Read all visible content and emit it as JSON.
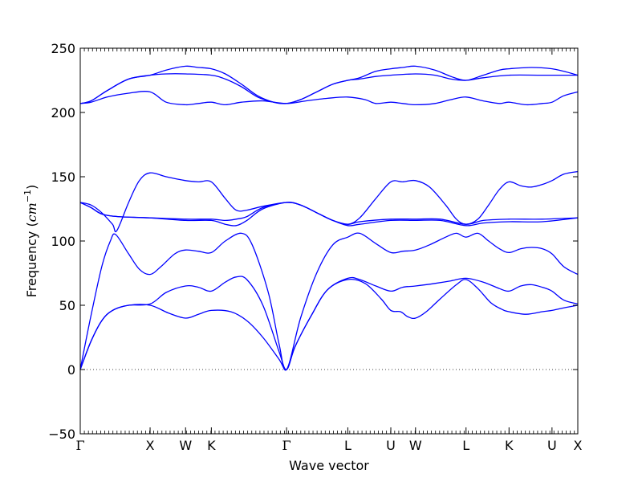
{
  "chart_data": {
    "type": "line",
    "xlabel": "Wave vector",
    "ylabel": {
      "text": "Frequency (",
      "unit": "cm",
      "exp": "−1",
      "close": ")"
    },
    "ylim": [
      -50,
      250
    ],
    "xlim": [
      0,
      4.63
    ],
    "yticks": [
      -50,
      0,
      50,
      100,
      150,
      200,
      250
    ],
    "ytick_labels": [
      "−50",
      "0",
      "50",
      "100",
      "150",
      "200",
      "250"
    ],
    "xticks": [
      {
        "label": "Γ",
        "x": 0.0
      },
      {
        "label": "X",
        "x": 0.65
      },
      {
        "label": "W",
        "x": 0.98
      },
      {
        "label": "K",
        "x": 1.22
      },
      {
        "label": "Γ",
        "x": 1.92
      },
      {
        "label": "L",
        "x": 2.49
      },
      {
        "label": "U",
        "x": 2.89
      },
      {
        "label": "W",
        "x": 3.12
      },
      {
        "label": "L",
        "x": 3.59
      },
      {
        "label": "K",
        "x": 3.99
      },
      {
        "label": "U",
        "x": 4.39
      },
      {
        "label": "X",
        "x": 4.63
      }
    ],
    "minor_tick_step": 0.038,
    "zero_line": {
      "y": 0,
      "style": "dotted"
    },
    "grid": false,
    "line_color": "#0000ff",
    "series": [
      {
        "values": [
          [
            0.0,
            0
          ],
          [
            0.1,
            22
          ],
          [
            0.2,
            38
          ],
          [
            0.3,
            46
          ],
          [
            0.45,
            50
          ],
          [
            0.65,
            50
          ],
          [
            0.82,
            44
          ],
          [
            0.98,
            40
          ],
          [
            1.1,
            43
          ],
          [
            1.22,
            46
          ],
          [
            1.4,
            45
          ],
          [
            1.55,
            38
          ],
          [
            1.7,
            25
          ],
          [
            1.85,
            8
          ],
          [
            1.92,
            0
          ],
          [
            2.0,
            18
          ],
          [
            2.15,
            42
          ],
          [
            2.3,
            62
          ],
          [
            2.49,
            70
          ],
          [
            2.65,
            67
          ],
          [
            2.8,
            55
          ],
          [
            2.89,
            46
          ],
          [
            2.98,
            45
          ],
          [
            3.05,
            41
          ],
          [
            3.12,
            40
          ],
          [
            3.22,
            45
          ],
          [
            3.35,
            55
          ],
          [
            3.5,
            66
          ],
          [
            3.59,
            70
          ],
          [
            3.7,
            63
          ],
          [
            3.82,
            52
          ],
          [
            3.92,
            47
          ],
          [
            3.99,
            45
          ],
          [
            4.15,
            43
          ],
          [
            4.3,
            45
          ],
          [
            4.39,
            46
          ],
          [
            4.5,
            48
          ],
          [
            4.63,
            50
          ]
        ]
      },
      {
        "values": [
          [
            0.0,
            0
          ],
          [
            0.1,
            22
          ],
          [
            0.2,
            38
          ],
          [
            0.3,
            46
          ],
          [
            0.45,
            50
          ],
          [
            0.65,
            51
          ],
          [
            0.8,
            60
          ],
          [
            0.98,
            65
          ],
          [
            1.1,
            64
          ],
          [
            1.22,
            61
          ],
          [
            1.35,
            68
          ],
          [
            1.45,
            72
          ],
          [
            1.55,
            70
          ],
          [
            1.7,
            50
          ],
          [
            1.85,
            14
          ],
          [
            1.92,
            0
          ],
          [
            2.0,
            18
          ],
          [
            2.15,
            42
          ],
          [
            2.3,
            62
          ],
          [
            2.49,
            71
          ],
          [
            2.6,
            70
          ],
          [
            2.75,
            65
          ],
          [
            2.89,
            61
          ],
          [
            3.0,
            64
          ],
          [
            3.12,
            65
          ],
          [
            3.3,
            67
          ],
          [
            3.45,
            69
          ],
          [
            3.59,
            71
          ],
          [
            3.75,
            68
          ],
          [
            3.9,
            63
          ],
          [
            3.99,
            61
          ],
          [
            4.1,
            65
          ],
          [
            4.2,
            66
          ],
          [
            4.3,
            64
          ],
          [
            4.39,
            61
          ],
          [
            4.5,
            54
          ],
          [
            4.63,
            51
          ]
        ]
      },
      {
        "values": [
          [
            0.0,
            0
          ],
          [
            0.1,
            42
          ],
          [
            0.2,
            80
          ],
          [
            0.28,
            100
          ],
          [
            0.33,
            105
          ],
          [
            0.45,
            90
          ],
          [
            0.55,
            78
          ],
          [
            0.65,
            74
          ],
          [
            0.75,
            80
          ],
          [
            0.88,
            90
          ],
          [
            0.98,
            93
          ],
          [
            1.1,
            92
          ],
          [
            1.22,
            91
          ],
          [
            1.35,
            100
          ],
          [
            1.5,
            106
          ],
          [
            1.6,
            97
          ],
          [
            1.75,
            60
          ],
          [
            1.85,
            20
          ],
          [
            1.92,
            0
          ],
          [
            2.05,
            40
          ],
          [
            2.2,
            75
          ],
          [
            2.35,
            97
          ],
          [
            2.49,
            103
          ],
          [
            2.6,
            106
          ],
          [
            2.75,
            98
          ],
          [
            2.89,
            91
          ],
          [
            3.0,
            92
          ],
          [
            3.12,
            93
          ],
          [
            3.25,
            97
          ],
          [
            3.4,
            103
          ],
          [
            3.5,
            106
          ],
          [
            3.59,
            103
          ],
          [
            3.7,
            106
          ],
          [
            3.8,
            100
          ],
          [
            3.9,
            94
          ],
          [
            3.99,
            91
          ],
          [
            4.1,
            94
          ],
          [
            4.2,
            95
          ],
          [
            4.3,
            94
          ],
          [
            4.39,
            90
          ],
          [
            4.5,
            80
          ],
          [
            4.63,
            74
          ]
        ]
      },
      {
        "values": [
          [
            0.0,
            130
          ],
          [
            0.1,
            128
          ],
          [
            0.2,
            122
          ],
          [
            0.3,
            113
          ],
          [
            0.34,
            108
          ],
          [
            0.45,
            130
          ],
          [
            0.55,
            147
          ],
          [
            0.65,
            153
          ],
          [
            0.8,
            150
          ],
          [
            0.98,
            147
          ],
          [
            1.1,
            146
          ],
          [
            1.22,
            146
          ],
          [
            1.35,
            133
          ],
          [
            1.45,
            124
          ],
          [
            1.55,
            124
          ],
          [
            1.7,
            127
          ],
          [
            1.92,
            130
          ],
          [
            2.05,
            128
          ],
          [
            2.2,
            122
          ],
          [
            2.35,
            116
          ],
          [
            2.49,
            113
          ],
          [
            2.6,
            118
          ],
          [
            2.75,
            133
          ],
          [
            2.89,
            146
          ],
          [
            3.0,
            146
          ],
          [
            3.12,
            147
          ],
          [
            3.25,
            142
          ],
          [
            3.4,
            128
          ],
          [
            3.5,
            117
          ],
          [
            3.59,
            113
          ],
          [
            3.7,
            117
          ],
          [
            3.8,
            128
          ],
          [
            3.9,
            140
          ],
          [
            3.99,
            146
          ],
          [
            4.1,
            143
          ],
          [
            4.2,
            142
          ],
          [
            4.3,
            144
          ],
          [
            4.39,
            147
          ],
          [
            4.5,
            152
          ],
          [
            4.63,
            154
          ]
        ]
      },
      {
        "values": [
          [
            0.0,
            130
          ],
          [
            0.1,
            126
          ],
          [
            0.2,
            121
          ],
          [
            0.35,
            119
          ],
          [
            0.65,
            118
          ],
          [
            0.98,
            116
          ],
          [
            1.22,
            116
          ],
          [
            1.35,
            113
          ],
          [
            1.45,
            112
          ],
          [
            1.55,
            116
          ],
          [
            1.7,
            125
          ],
          [
            1.92,
            130
          ],
          [
            2.05,
            128
          ],
          [
            2.2,
            122
          ],
          [
            2.35,
            116
          ],
          [
            2.49,
            112
          ],
          [
            2.6,
            113
          ],
          [
            2.89,
            116
          ],
          [
            3.12,
            116
          ],
          [
            3.35,
            116
          ],
          [
            3.59,
            112
          ],
          [
            3.75,
            114
          ],
          [
            3.99,
            115
          ],
          [
            4.3,
            115
          ],
          [
            4.63,
            118
          ]
        ]
      },
      {
        "values": [
          [
            0.0,
            130
          ],
          [
            0.1,
            126
          ],
          [
            0.2,
            121
          ],
          [
            0.35,
            119
          ],
          [
            0.65,
            118
          ],
          [
            0.98,
            117
          ],
          [
            1.22,
            117
          ],
          [
            1.35,
            116
          ],
          [
            1.45,
            117
          ],
          [
            1.55,
            119
          ],
          [
            1.7,
            126
          ],
          [
            1.92,
            130
          ],
          [
            2.05,
            128
          ],
          [
            2.2,
            122
          ],
          [
            2.35,
            116
          ],
          [
            2.49,
            113
          ],
          [
            2.6,
            115
          ],
          [
            2.89,
            117
          ],
          [
            3.12,
            117
          ],
          [
            3.35,
            117
          ],
          [
            3.59,
            113
          ],
          [
            3.75,
            116
          ],
          [
            3.99,
            117
          ],
          [
            4.3,
            117
          ],
          [
            4.63,
            118
          ]
        ]
      },
      {
        "values": [
          [
            0.0,
            207
          ],
          [
            0.1,
            208
          ],
          [
            0.25,
            212
          ],
          [
            0.45,
            215
          ],
          [
            0.65,
            216
          ],
          [
            0.8,
            208
          ],
          [
            0.98,
            206
          ],
          [
            1.1,
            207
          ],
          [
            1.22,
            208
          ],
          [
            1.35,
            206
          ],
          [
            1.5,
            208
          ],
          [
            1.7,
            209
          ],
          [
            1.92,
            207
          ],
          [
            2.1,
            209
          ],
          [
            2.3,
            211
          ],
          [
            2.49,
            212
          ],
          [
            2.65,
            210
          ],
          [
            2.75,
            207
          ],
          [
            2.89,
            208
          ],
          [
            3.0,
            207
          ],
          [
            3.12,
            206
          ],
          [
            3.3,
            207
          ],
          [
            3.45,
            210
          ],
          [
            3.59,
            212
          ],
          [
            3.75,
            209
          ],
          [
            3.9,
            207
          ],
          [
            3.99,
            208
          ],
          [
            4.15,
            206
          ],
          [
            4.3,
            207
          ],
          [
            4.39,
            208
          ],
          [
            4.5,
            213
          ],
          [
            4.63,
            216
          ]
        ]
      },
      {
        "values": [
          [
            0.0,
            207
          ],
          [
            0.1,
            209
          ],
          [
            0.25,
            217
          ],
          [
            0.45,
            226
          ],
          [
            0.65,
            229
          ],
          [
            0.8,
            230
          ],
          [
            0.98,
            230
          ],
          [
            1.22,
            229
          ],
          [
            1.35,
            226
          ],
          [
            1.5,
            220
          ],
          [
            1.65,
            212
          ],
          [
            1.8,
            208
          ],
          [
            1.92,
            207
          ],
          [
            2.05,
            210
          ],
          [
            2.2,
            216
          ],
          [
            2.35,
            222
          ],
          [
            2.49,
            225
          ],
          [
            2.6,
            226
          ],
          [
            2.75,
            228
          ],
          [
            2.89,
            229
          ],
          [
            3.12,
            230
          ],
          [
            3.3,
            229
          ],
          [
            3.45,
            226
          ],
          [
            3.59,
            225
          ],
          [
            3.75,
            227
          ],
          [
            3.99,
            229
          ],
          [
            4.3,
            229
          ],
          [
            4.63,
            229
          ]
        ]
      },
      {
        "values": [
          [
            0.0,
            207
          ],
          [
            0.1,
            209
          ],
          [
            0.25,
            217
          ],
          [
            0.45,
            226
          ],
          [
            0.65,
            229
          ],
          [
            0.8,
            233
          ],
          [
            0.98,
            236
          ],
          [
            1.1,
            235
          ],
          [
            1.22,
            234
          ],
          [
            1.35,
            230
          ],
          [
            1.5,
            222
          ],
          [
            1.65,
            213
          ],
          [
            1.8,
            208
          ],
          [
            1.92,
            207
          ],
          [
            2.05,
            210
          ],
          [
            2.2,
            216
          ],
          [
            2.35,
            222
          ],
          [
            2.49,
            225
          ],
          [
            2.6,
            227
          ],
          [
            2.75,
            232
          ],
          [
            2.89,
            234
          ],
          [
            3.0,
            235
          ],
          [
            3.12,
            236
          ],
          [
            3.3,
            233
          ],
          [
            3.45,
            228
          ],
          [
            3.59,
            225
          ],
          [
            3.75,
            229
          ],
          [
            3.9,
            233
          ],
          [
            3.99,
            234
          ],
          [
            4.2,
            235
          ],
          [
            4.39,
            234
          ],
          [
            4.5,
            232
          ],
          [
            4.63,
            229
          ]
        ]
      }
    ]
  }
}
